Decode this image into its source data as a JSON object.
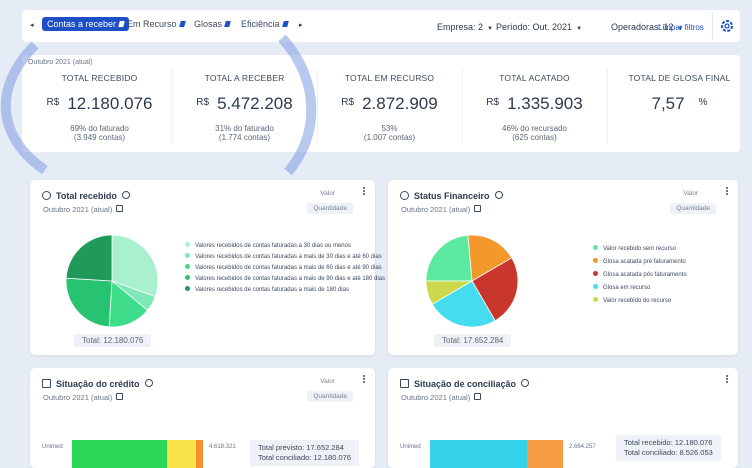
{
  "nav": {
    "tabs": [
      "Contas a receber",
      "Em Recurso",
      "Glosas",
      "Eficiência"
    ],
    "filters": [
      "Empresa: 2",
      "Período: Out. 2021",
      "Operadoras: 12"
    ],
    "clear": "Limpar filtros"
  },
  "summary": {
    "period": "Outubro 2021 (atual)",
    "kpis": [
      {
        "title": "TOTAL RECEBIDO",
        "currency": "R$",
        "value": "12.180.076",
        "note": "69% do faturado",
        "count": "(3.949 contas)"
      },
      {
        "title": "TOTAL A RECEBER",
        "currency": "R$",
        "value": "5.472.208",
        "note": "31% do faturado",
        "count": "(1.774 contas)"
      },
      {
        "title": "TOTAL EM RECURSO",
        "currency": "R$",
        "value": "2.872.909",
        "note": "53%",
        "count": "(1.007 contas)"
      },
      {
        "title": "TOTAL ACATADO",
        "currency": "R$",
        "value": "1.335.903",
        "note": "46% do recursado",
        "count": "(625 contas)"
      },
      {
        "title": "TOTAL DE GLOSA FINAL",
        "value": "7,57",
        "unit": "%"
      }
    ]
  },
  "cards": [
    {
      "title": "Total recebido",
      "period": "Outubro 2021 (atual)",
      "toggle": [
        "Valor",
        "Quantidade"
      ],
      "total": "Total: 12.180.076",
      "slices": [
        {
          "name": "Valores recebidos de contas faturadas a 30 dias ou menos",
          "color": "#a9f0cf",
          "value": 30.5
        },
        {
          "name": "Valores recebidos de contas faturadas a mais de 30 dias e até 60 dias",
          "color": "#7ee9b6",
          "value": 5.5
        },
        {
          "name": "Valores recebidos de contas faturadas a mais de 60 dias e até 90 dias",
          "color": "#3fdc8c",
          "value": 15
        },
        {
          "name": "Valores recebidos de contas faturadas a mais de 90 dias e até 180 dias",
          "color": "#28c371",
          "value": 25
        },
        {
          "name": "Valores recebidos de contas faturadas a mais de 180 dias",
          "color": "#1f9a58",
          "value": 24
        }
      ]
    },
    {
      "title": "Status Financeiro",
      "period": "Outubro 2021 (atual)",
      "toggle": [
        "Valor",
        "Quantidade"
      ],
      "total": "Total: 17.652.284",
      "slices": [
        {
          "name": "Valor recebido sem recurso",
          "color": "#5beaa0",
          "value": 23.6
        },
        {
          "name": "Glosa acatada pré faturamento",
          "color": "#f5982a",
          "value": 18
        },
        {
          "name": "Glosa acatada pós faturamento",
          "color": "#c9372c",
          "value": 25
        },
        {
          "name": "Glosa em recurso",
          "color": "#45dcef",
          "value": 25
        },
        {
          "name": "Valor recebido do recurso",
          "color": "#cbd94a",
          "value": 8.4
        }
      ]
    },
    {
      "title": "Situação do crédito",
      "period": "Outubro 2021 (atual)",
      "toggle": [
        "Valor",
        "Quantidade"
      ],
      "rows": [
        {
          "label": "Unimed",
          "segments": [
            {
              "color": "#2ed65a",
              "value": 3350000
            },
            {
              "color": "#f8e34a",
              "value": 1020000
            },
            {
              "color": "#f5902a",
              "value": 248321
            }
          ],
          "total": 4618321,
          "total_label": "4.618.321"
        }
      ],
      "totals": [
        "Total previsto: 17.652.284",
        "Total conciliado: 12.180.076"
      ]
    },
    {
      "title": "Situação de conciliação",
      "period": "Outubro 2021 (atual)",
      "rows": [
        {
          "label": "Unimed",
          "segments": [
            {
              "color": "#35d3ea",
              "value": 1943000
            },
            {
              "color": "#f59c45",
              "value": 721257
            }
          ],
          "total": 2664257,
          "total_label": "2.664.257"
        }
      ],
      "totals": [
        "Total recebido: 12.180.076",
        "Total conciliado: 8.526.053"
      ]
    }
  ]
}
